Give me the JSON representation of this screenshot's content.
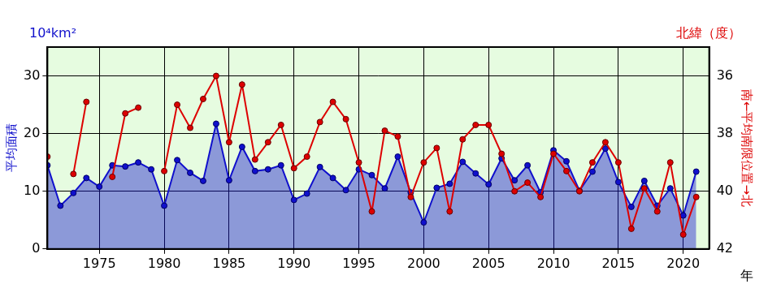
{
  "chart_data": {
    "type": "line",
    "x": [
      1971,
      1972,
      1973,
      1974,
      1975,
      1976,
      1977,
      1978,
      1979,
      1980,
      1981,
      1982,
      1983,
      1984,
      1985,
      1986,
      1987,
      1988,
      1989,
      1990,
      1991,
      1992,
      1993,
      1994,
      1995,
      1996,
      1997,
      1998,
      1999,
      2000,
      2001,
      2002,
      2003,
      2004,
      2005,
      2006,
      2007,
      2008,
      2009,
      2010,
      2011,
      2012,
      2013,
      2014,
      2015,
      2016,
      2017,
      2018,
      2019,
      2020,
      2021
    ],
    "x_label": "年",
    "y_label": "平均面積",
    "y_unit": "10⁴km²",
    "y2_label": "南←平均南限位置→北",
    "y2_unit": "北緯（度）",
    "xlim": [
      1971,
      2022
    ],
    "xticks": [
      1975,
      1980,
      1985,
      1990,
      1995,
      2000,
      2005,
      2010,
      2015,
      2020
    ],
    "ylim": [
      0,
      35
    ],
    "yticks": [
      0,
      10,
      20,
      30
    ],
    "y2lim": [
      42,
      35
    ],
    "y2ticks": [
      36,
      38,
      40,
      42
    ],
    "grid": true,
    "series": [
      {
        "name": "平均面積",
        "type": "area",
        "axis": "y",
        "color": "#1010cc",
        "marker": "circle",
        "values": [
          14.5,
          7.5,
          9.7,
          12.3,
          10.8,
          14.5,
          14.3,
          15.0,
          13.8,
          7.5,
          15.4,
          13.2,
          11.8,
          21.7,
          11.9,
          17.7,
          13.5,
          13.8,
          14.5,
          8.5,
          9.6,
          14.2,
          12.3,
          10.2,
          13.8,
          12.8,
          10.5,
          16.0,
          9.8,
          4.6,
          10.6,
          11.3,
          15.1,
          13.1,
          11.2,
          15.7,
          11.9,
          14.5,
          9.8,
          17.1,
          15.2,
          10.1,
          13.4,
          17.4,
          11.6,
          7.3,
          11.8,
          7.5,
          10.5,
          5.8,
          13.4
        ]
      },
      {
        "name": "南←平均南限位置→北",
        "type": "line",
        "axis": "y2",
        "color": "#dd0000",
        "marker": "circle",
        "values": [
          38.8,
          null,
          39.4,
          36.9,
          null,
          39.5,
          37.3,
          37.1,
          null,
          39.3,
          37.0,
          37.8,
          36.8,
          36.0,
          38.3,
          36.3,
          38.9,
          38.3,
          37.7,
          39.2,
          38.8,
          37.6,
          36.9,
          37.5,
          39.0,
          40.7,
          37.9,
          38.1,
          40.2,
          39.0,
          38.5,
          40.7,
          38.2,
          37.7,
          37.7,
          38.7,
          40.0,
          39.7,
          40.2,
          38.7,
          39.3,
          40.0,
          39.0,
          38.3,
          39.0,
          41.3,
          39.9,
          40.7,
          39.0,
          41.5,
          40.2
        ]
      }
    ]
  }
}
